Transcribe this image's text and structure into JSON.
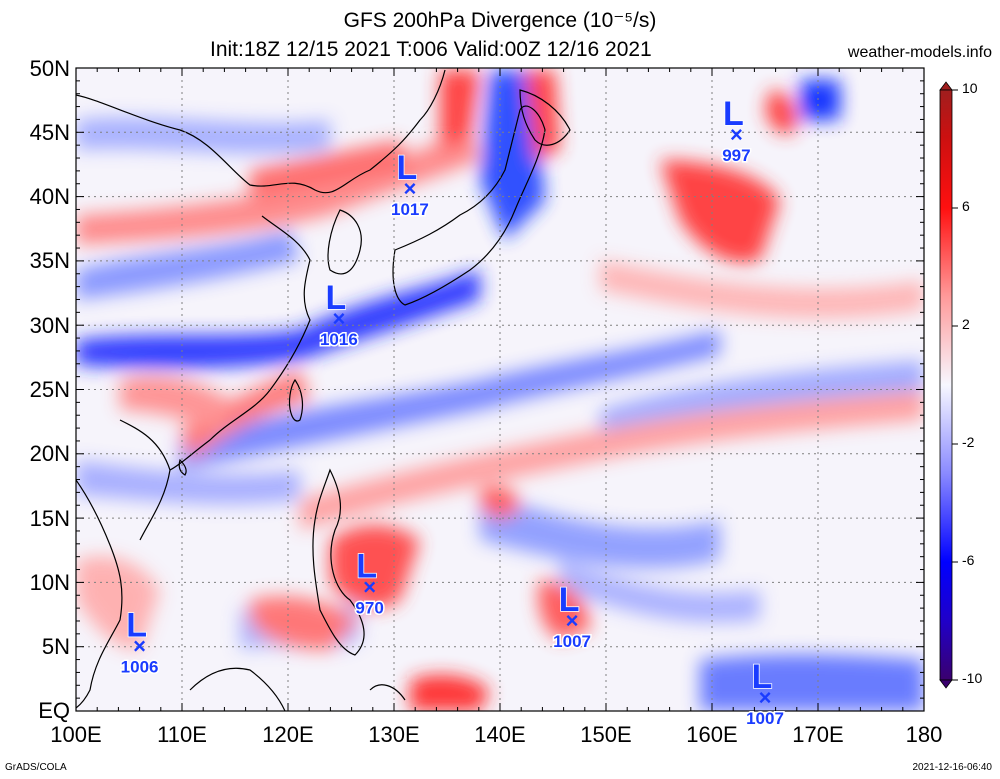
{
  "title": "GFS 200hPa Divergence (10⁻⁵/s)",
  "subtitle": "Init:18Z 12/15 2021 T:006 Valid:00Z 12/16 2021",
  "site": "weather-models.info",
  "footer_left": "GrADS/COLA",
  "footer_right": "2021-12-16-06:40",
  "lat_labels": [
    "50N",
    "45N",
    "40N",
    "35N",
    "30N",
    "25N",
    "20N",
    "15N",
    "10N",
    "5N",
    "EQ"
  ],
  "lon_labels": [
    "100E",
    "110E",
    "120E",
    "130E",
    "140E",
    "150E",
    "160E",
    "170E",
    "180"
  ],
  "colorbar": {
    "labels": [
      "10",
      "6",
      "2",
      "-2",
      "-6",
      "-10"
    ],
    "min": -10,
    "max": 10
  },
  "lows": [
    {
      "label": "L",
      "value": "1017",
      "lon": 131.5,
      "lat": 40.6
    },
    {
      "label": "L",
      "value": "1016",
      "lon": 124.8,
      "lat": 30.5
    },
    {
      "label": "L",
      "value": "997",
      "lon": 162.3,
      "lat": 44.8
    },
    {
      "label": "L",
      "value": "970",
      "lon": 127.7,
      "lat": 9.6
    },
    {
      "label": "L",
      "value": "1007",
      "lon": 146.8,
      "lat": 7.0
    },
    {
      "label": "L",
      "value": "1006",
      "lon": 106.0,
      "lat": 5.0
    },
    {
      "label": "L",
      "value": "1007",
      "lon": 165.0,
      "lat": 1.0
    }
  ],
  "colors": {
    "low_marker": "#1a3cff",
    "positive": "#ff0000",
    "negative": "#0000ff"
  }
}
